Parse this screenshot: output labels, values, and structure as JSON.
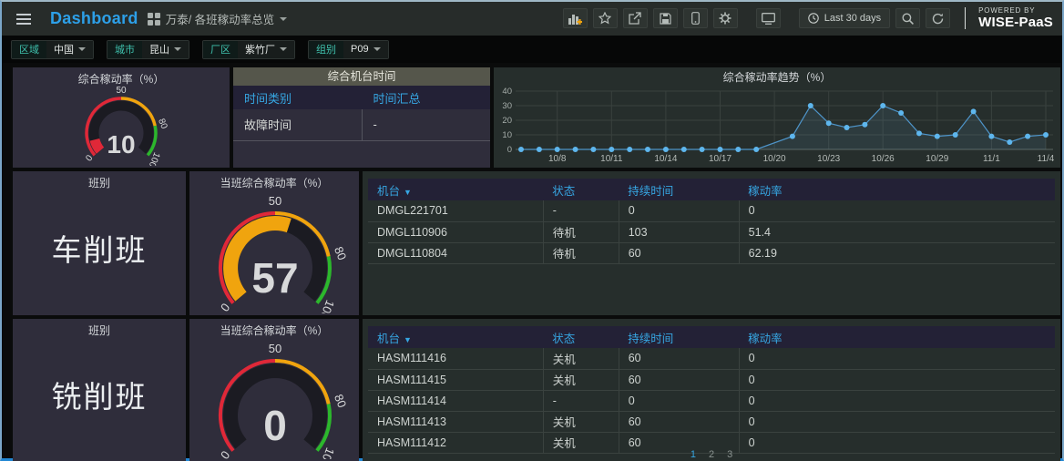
{
  "topbar": {
    "title": "Dashboard",
    "breadcrumb": "万泰/ 各班稼动率总览",
    "time_range": "Last 30 days",
    "powered_by": "POWERED BY",
    "brand": "WISE-PaaS",
    "icon_names": [
      "menu",
      "dashboards-grid",
      "add-panel",
      "star",
      "share",
      "save",
      "mobile",
      "settings",
      "tv",
      "clock",
      "search",
      "refresh"
    ]
  },
  "filters": [
    {
      "label": "区域",
      "value": "中国"
    },
    {
      "label": "城市",
      "value": "昆山"
    },
    {
      "label": "厂区",
      "value": "紫竹厂"
    },
    {
      "label": "组别",
      "value": "P09"
    }
  ],
  "colors": {
    "red": "#e02838",
    "orange": "#f0a40e",
    "green": "#2cb72c",
    "link_blue": "#36a6e2",
    "brand_blue": "#2da0e8",
    "line": "#4e94c9",
    "point": "#5eb6ed",
    "gauge_track": "#1b1b22"
  },
  "overall_gauge": {
    "title": "综合稼动率（%）",
    "value": 10,
    "ticks": [
      "0",
      "50",
      "80",
      "100"
    ],
    "thresholds": [
      {
        "to": 50,
        "color": "red"
      },
      {
        "to": 80,
        "color": "orange"
      },
      {
        "to": 100,
        "color": "green"
      }
    ]
  },
  "machine_time": {
    "title": "综合机台时间",
    "columns": [
      "时间类别",
      "时间汇总"
    ],
    "rows": [
      [
        "故障时间",
        "-"
      ]
    ]
  },
  "chart_data": {
    "type": "line",
    "title": "综合稼动率趋势（%）",
    "x": [
      "10/6",
      "10/7",
      "10/8",
      "10/9",
      "10/10",
      "10/11",
      "10/12",
      "10/13",
      "10/14",
      "10/15",
      "10/16",
      "10/17",
      "10/18",
      "10/19",
      "10/21",
      "10/22",
      "10/23",
      "10/24",
      "10/25",
      "10/26",
      "10/27",
      "10/28",
      "10/29",
      "10/30",
      "10/31",
      "11/1",
      "11/2",
      "11/3",
      "11/4"
    ],
    "day_offsets": [
      0,
      1,
      2,
      3,
      4,
      5,
      6,
      7,
      8,
      9,
      10,
      11,
      12,
      13,
      15,
      16,
      17,
      18,
      19,
      20,
      21,
      22,
      23,
      24,
      25,
      26,
      27,
      28,
      29
    ],
    "values": [
      0,
      0,
      0,
      0,
      0,
      0,
      0,
      0,
      0,
      0,
      0,
      0,
      0,
      0,
      9,
      30,
      18,
      15,
      17,
      30,
      25,
      11,
      9,
      10,
      26,
      9,
      5,
      9,
      10
    ],
    "x_ticks": [
      {
        "label": "10/8",
        "offset": 2
      },
      {
        "label": "10/11",
        "offset": 5
      },
      {
        "label": "10/14",
        "offset": 8
      },
      {
        "label": "10/17",
        "offset": 11
      },
      {
        "label": "10/20",
        "offset": 14
      },
      {
        "label": "10/23",
        "offset": 17
      },
      {
        "label": "10/26",
        "offset": 20
      },
      {
        "label": "10/29",
        "offset": 23
      },
      {
        "label": "11/1",
        "offset": 26
      },
      {
        "label": "11/4",
        "offset": 29
      }
    ],
    "y_ticks": [
      0,
      10,
      20,
      30,
      40
    ],
    "ylim": [
      0,
      46
    ],
    "grid": true,
    "legend": "none"
  },
  "shifts": [
    {
      "panel_title": "班别",
      "name": "车削班",
      "gauge_title": "当班综合稼动率（%）",
      "gauge_value": 57,
      "gauge_ticks": [
        "0",
        "50",
        "80",
        "100"
      ],
      "table": {
        "columns": [
          "机台",
          "状态",
          "持续时间",
          "稼动率"
        ],
        "rows": [
          [
            "DMGL221701",
            "-",
            "0",
            "0"
          ],
          [
            "DMGL110906",
            "待机",
            "103",
            "51.4"
          ],
          [
            "DMGL110804",
            "待机",
            "60",
            "62.19"
          ]
        ]
      }
    },
    {
      "panel_title": "班别",
      "name": "铣削班",
      "gauge_title": "当班综合稼动率（%）",
      "gauge_value": 0,
      "gauge_ticks": [
        "0",
        "50",
        "80",
        "100"
      ],
      "table": {
        "columns": [
          "机台",
          "状态",
          "持续时间",
          "稼动率"
        ],
        "rows": [
          [
            "HASM111416",
            "关机",
            "60",
            "0"
          ],
          [
            "HASM111415",
            "关机",
            "60",
            "0"
          ],
          [
            "HASM111414",
            "-",
            "0",
            "0"
          ],
          [
            "HASM111413",
            "关机",
            "60",
            "0"
          ],
          [
            "HASM111412",
            "关机",
            "60",
            "0"
          ]
        ],
        "pagination": [
          "1",
          "2",
          "3"
        ],
        "current_page": "1"
      }
    }
  ]
}
